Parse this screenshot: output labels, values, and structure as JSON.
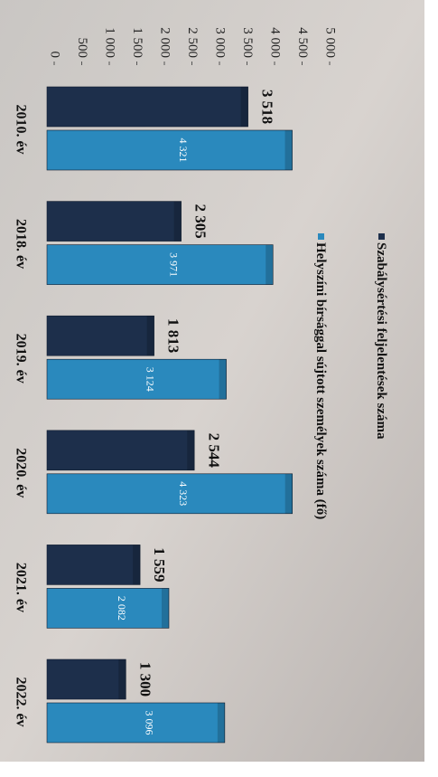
{
  "chart_data": {
    "type": "bar",
    "categories": [
      "2010. év",
      "2018. év",
      "2019. év",
      "2020. év",
      "2021. év",
      "2022. év"
    ],
    "series": [
      {
        "name": "Szabálysértési feljelentések száma",
        "color": "#1d2f4b",
        "values": [
          3518,
          2305,
          1813,
          2544,
          1559,
          1300
        ],
        "value_labels": [
          "3 518",
          "2 305",
          "1 813",
          "2 544",
          "1 559",
          "1 300"
        ]
      },
      {
        "name": "Helyszíni bírsággal sújtott személyek száma (fő)",
        "color": "#2a89bd",
        "values": [
          4321,
          3971,
          3124,
          4323,
          2082,
          3096
        ],
        "value_labels": [
          "4 321",
          "3 971",
          "3 124",
          "4 323",
          "2 082",
          "3 096"
        ]
      }
    ],
    "xlim": [
      0,
      5000
    ],
    "xticks": [
      0,
      500,
      {
        "value": 1000,
        "label": "1 000"
      },
      {
        "value": 1500,
        "label": "1 500"
      },
      {
        "value": 2000,
        "label": "2 000"
      },
      {
        "value": 2500,
        "label": "2 500"
      },
      {
        "value": 3000,
        "label": "3 000"
      },
      {
        "value": 3500,
        "label": "3 500"
      },
      {
        "value": 4000,
        "label": "4 000"
      },
      {
        "value": 4500,
        "label": "4 500"
      },
      {
        "value": 5000,
        "label": "5 000"
      }
    ]
  }
}
